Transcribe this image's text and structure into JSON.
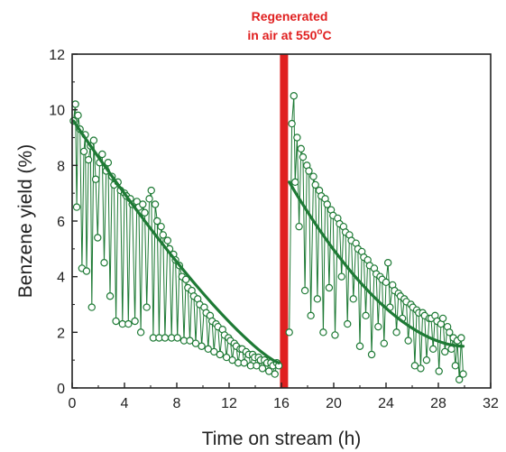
{
  "chart_data": {
    "type": "scatter",
    "xlabel": "Time on stream (h)",
    "ylabel": "Benzene yield (%)",
    "xlim": [
      0,
      32
    ],
    "ylim": [
      0,
      12
    ],
    "xticks": [
      0,
      4,
      8,
      12,
      16,
      20,
      24,
      28,
      32
    ],
    "yticks": [
      0,
      2,
      4,
      6,
      8,
      10,
      12
    ],
    "grid": false,
    "colors": {
      "series": "#1e7a35",
      "regeneration_bar": "#e02020",
      "annotation": "#e02020"
    },
    "annotation": {
      "line1": "Regenerated",
      "line2_prefix": "in air at 550",
      "line2_sup": "o",
      "line2_suffix": "C",
      "x": 16.2
    },
    "segments": [
      {
        "x_start": 0.1,
        "x_end": 15.8,
        "upper_start": 9.6,
        "upper_end": 0.9,
        "lower_start": 4.2,
        "lower_end": 0.5,
        "points": [
          [
            0.1,
            9.6
          ],
          [
            0.25,
            10.2
          ],
          [
            0.35,
            6.5
          ],
          [
            0.45,
            9.8
          ],
          [
            0.6,
            9.3
          ],
          [
            0.75,
            4.3
          ],
          [
            0.9,
            8.5
          ],
          [
            1.0,
            9.1
          ],
          [
            1.1,
            4.2
          ],
          [
            1.25,
            8.2
          ],
          [
            1.4,
            8.7
          ],
          [
            1.5,
            2.9
          ],
          [
            1.65,
            8.9
          ],
          [
            1.8,
            7.5
          ],
          [
            1.95,
            5.4
          ],
          [
            2.1,
            8.1
          ],
          [
            2.3,
            8.4
          ],
          [
            2.45,
            4.5
          ],
          [
            2.6,
            7.8
          ],
          [
            2.75,
            8.1
          ],
          [
            2.9,
            3.3
          ],
          [
            3.05,
            7.6
          ],
          [
            3.2,
            7.3
          ],
          [
            3.35,
            2.4
          ],
          [
            3.5,
            7.4
          ],
          [
            3.7,
            7.1
          ],
          [
            3.85,
            2.3
          ],
          [
            4.0,
            7.0
          ],
          [
            4.15,
            6.9
          ],
          [
            4.3,
            2.3
          ],
          [
            4.45,
            6.8
          ],
          [
            4.6,
            6.6
          ],
          [
            4.8,
            2.4
          ],
          [
            4.95,
            6.7
          ],
          [
            5.1,
            6.5
          ],
          [
            5.25,
            2.0
          ],
          [
            5.4,
            6.6
          ],
          [
            5.55,
            6.3
          ],
          [
            5.7,
            2.9
          ],
          [
            5.9,
            6.8
          ],
          [
            6.05,
            7.1
          ],
          [
            6.2,
            1.8
          ],
          [
            6.35,
            6.6
          ],
          [
            6.5,
            6.0
          ],
          [
            6.65,
            1.8
          ],
          [
            6.8,
            5.8
          ],
          [
            6.95,
            5.5
          ],
          [
            7.1,
            1.8
          ],
          [
            7.3,
            5.3
          ],
          [
            7.45,
            5.0
          ],
          [
            7.6,
            1.8
          ],
          [
            7.75,
            4.8
          ],
          [
            7.9,
            4.6
          ],
          [
            8.05,
            1.8
          ],
          [
            8.2,
            4.4
          ],
          [
            8.4,
            4.0
          ],
          [
            8.55,
            1.7
          ],
          [
            8.7,
            3.9
          ],
          [
            8.85,
            3.6
          ],
          [
            9.0,
            1.7
          ],
          [
            9.15,
            3.5
          ],
          [
            9.3,
            3.3
          ],
          [
            9.45,
            1.6
          ],
          [
            9.6,
            3.2
          ],
          [
            9.75,
            3.0
          ],
          [
            9.9,
            1.5
          ],
          [
            10.1,
            2.9
          ],
          [
            10.25,
            2.7
          ],
          [
            10.4,
            1.4
          ],
          [
            10.55,
            2.6
          ],
          [
            10.7,
            2.4
          ],
          [
            10.85,
            1.3
          ],
          [
            11.0,
            2.3
          ],
          [
            11.15,
            2.2
          ],
          [
            11.3,
            1.2
          ],
          [
            11.5,
            2.1
          ],
          [
            11.65,
            1.9
          ],
          [
            11.8,
            1.1
          ],
          [
            11.95,
            1.8
          ],
          [
            12.1,
            1.7
          ],
          [
            12.25,
            1.0
          ],
          [
            12.4,
            1.6
          ],
          [
            12.55,
            1.5
          ],
          [
            12.7,
            0.9
          ],
          [
            12.85,
            1.4
          ],
          [
            13.0,
            1.4
          ],
          [
            13.15,
            0.9
          ],
          [
            13.3,
            1.3
          ],
          [
            13.5,
            1.2
          ],
          [
            13.65,
            0.8
          ],
          [
            13.8,
            1.2
          ],
          [
            13.95,
            1.1
          ],
          [
            14.1,
            0.8
          ],
          [
            14.25,
            1.1
          ],
          [
            14.4,
            1.0
          ],
          [
            14.55,
            0.7
          ],
          [
            14.7,
            1.0
          ],
          [
            14.9,
            0.9
          ],
          [
            15.05,
            0.6
          ],
          [
            15.2,
            0.9
          ],
          [
            15.35,
            0.8
          ],
          [
            15.5,
            0.5
          ],
          [
            15.65,
            0.9
          ],
          [
            15.8,
            0.8
          ]
        ]
      },
      {
        "x_start": 16.6,
        "x_end": 29.9,
        "upper_start": 7.4,
        "upper_end": 1.5,
        "lower_start": 2.0,
        "lower_end": 0.3,
        "points": [
          [
            16.6,
            2.0
          ],
          [
            16.8,
            9.5
          ],
          [
            16.95,
            10.5
          ],
          [
            17.05,
            7.4
          ],
          [
            17.2,
            9.0
          ],
          [
            17.35,
            5.8
          ],
          [
            17.5,
            8.6
          ],
          [
            17.65,
            8.3
          ],
          [
            17.8,
            3.5
          ],
          [
            17.95,
            8.0
          ],
          [
            18.1,
            7.8
          ],
          [
            18.25,
            2.6
          ],
          [
            18.45,
            7.6
          ],
          [
            18.6,
            7.3
          ],
          [
            18.75,
            3.2
          ],
          [
            18.9,
            7.1
          ],
          [
            19.05,
            6.9
          ],
          [
            19.2,
            2.0
          ],
          [
            19.35,
            6.8
          ],
          [
            19.5,
            6.6
          ],
          [
            19.65,
            3.6
          ],
          [
            19.8,
            6.4
          ],
          [
            19.95,
            6.2
          ],
          [
            20.1,
            1.9
          ],
          [
            20.3,
            6.1
          ],
          [
            20.45,
            5.9
          ],
          [
            20.6,
            4.0
          ],
          [
            20.75,
            5.8
          ],
          [
            20.9,
            5.6
          ],
          [
            21.05,
            2.3
          ],
          [
            21.2,
            5.5
          ],
          [
            21.35,
            5.3
          ],
          [
            21.5,
            3.2
          ],
          [
            21.7,
            5.2
          ],
          [
            21.85,
            5.0
          ],
          [
            22.0,
            1.5
          ],
          [
            22.15,
            4.9
          ],
          [
            22.3,
            4.7
          ],
          [
            22.45,
            2.6
          ],
          [
            22.6,
            4.6
          ],
          [
            22.75,
            4.4
          ],
          [
            22.9,
            1.2
          ],
          [
            23.1,
            4.3
          ],
          [
            23.25,
            4.1
          ],
          [
            23.4,
            2.2
          ],
          [
            23.55,
            4.0
          ],
          [
            23.7,
            3.9
          ],
          [
            23.85,
            1.6
          ],
          [
            24.0,
            3.8
          ],
          [
            24.15,
            4.5
          ],
          [
            24.3,
            2.9
          ],
          [
            24.5,
            3.7
          ],
          [
            24.65,
            3.5
          ],
          [
            24.8,
            2.0
          ],
          [
            24.95,
            3.4
          ],
          [
            25.1,
            3.3
          ],
          [
            25.25,
            2.5
          ],
          [
            25.4,
            3.2
          ],
          [
            25.55,
            3.1
          ],
          [
            25.7,
            1.7
          ],
          [
            25.9,
            3.0
          ],
          [
            26.05,
            2.9
          ],
          [
            26.2,
            0.8
          ],
          [
            26.35,
            2.8
          ],
          [
            26.5,
            2.7
          ],
          [
            26.65,
            0.7
          ],
          [
            26.8,
            2.7
          ],
          [
            26.95,
            2.6
          ],
          [
            27.1,
            1.0
          ],
          [
            27.3,
            2.5
          ],
          [
            27.45,
            2.5
          ],
          [
            27.6,
            1.4
          ],
          [
            27.75,
            2.6
          ],
          [
            27.9,
            2.4
          ],
          [
            28.05,
            0.6
          ],
          [
            28.2,
            2.3
          ],
          [
            28.35,
            2.5
          ],
          [
            28.5,
            1.3
          ],
          [
            28.7,
            2.2
          ],
          [
            28.85,
            2.0
          ],
          [
            29.0,
            1.4
          ],
          [
            29.15,
            1.8
          ],
          [
            29.3,
            0.8
          ],
          [
            29.45,
            1.7
          ],
          [
            29.6,
            0.3
          ],
          [
            29.75,
            1.8
          ],
          [
            29.9,
            0.5
          ]
        ]
      }
    ]
  }
}
